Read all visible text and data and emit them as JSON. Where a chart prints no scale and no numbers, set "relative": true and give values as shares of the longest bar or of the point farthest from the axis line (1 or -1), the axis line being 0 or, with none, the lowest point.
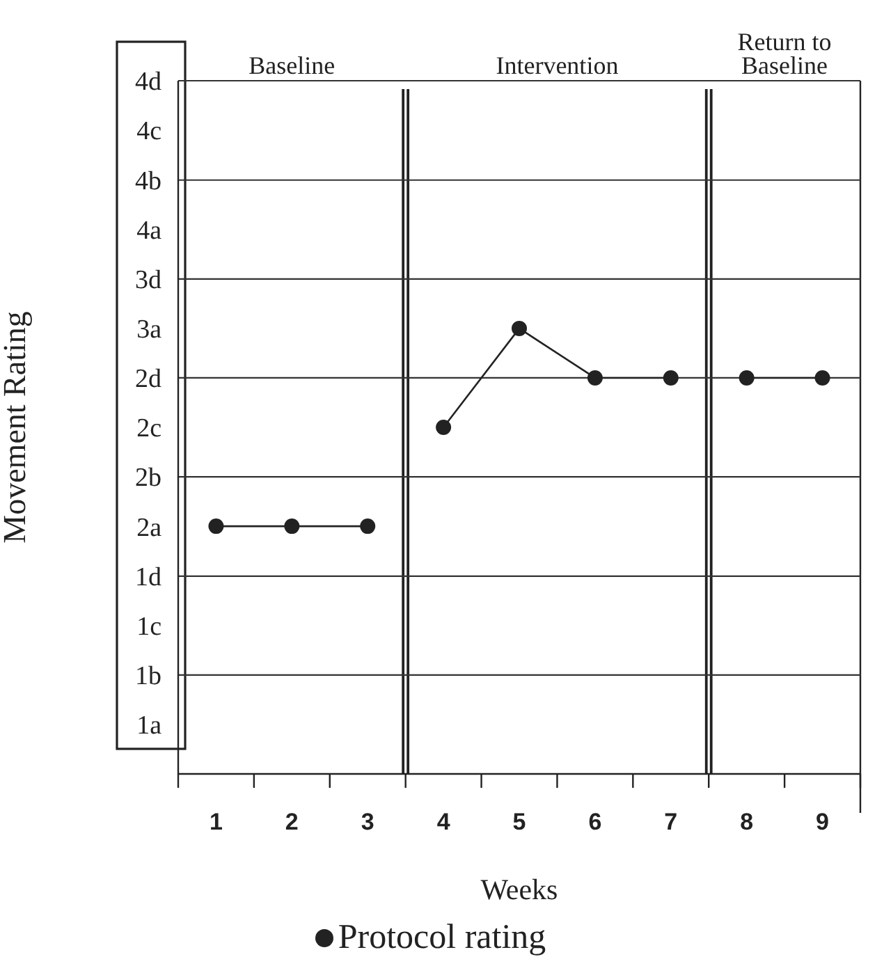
{
  "chart_data": {
    "type": "line",
    "xlabel": "Weeks",
    "ylabel": "Movement Rating",
    "annotations": [
      "Baseline",
      "Intervention",
      "Return to Baseline"
    ],
    "series": [
      {
        "name": "Protocol rating",
        "color": "#222222",
        "x": [
          1,
          2,
          3
        ],
        "values": [
          0.556,
          0.556,
          0.556
        ]
      },
      {
        "color": "#222222",
        "x": [
          4,
          5,
          6,
          7
        ],
        "values": [
          0.778,
          1,
          0.889,
          0.889
        ]
      },
      {
        "color": "#222222",
        "x": [
          8,
          9
        ],
        "values": [
          0.889,
          0.889
        ]
      }
    ],
    "xlim": [
      0.5,
      9.5
    ],
    "xticks": [
      {
        "value": 0.5,
        "label": null
      },
      1,
      {
        "value": 1.5,
        "label": null
      },
      2,
      {
        "value": 2.5,
        "label": null
      },
      3,
      {
        "value": 3.5,
        "label": null
      },
      4,
      {
        "value": 4.5,
        "label": null
      },
      5,
      {
        "value": 5.5,
        "label": null
      },
      6,
      {
        "value": 6.5,
        "label": null
      },
      7,
      {
        "value": 7.5,
        "label": null
      },
      8,
      {
        "value": 8.5,
        "label": null
      },
      9,
      {
        "value": 9.5,
        "label": null
      }
    ],
    "relative": true,
    "y_categories": [
      "4d",
      "4c",
      "4b",
      "4a",
      "3d",
      "3a",
      "2d",
      "2c",
      "2b",
      "2a",
      "1d",
      "1c",
      "1b",
      "1a"
    ],
    "ref_lines": [
      {
        "axis": "x",
        "value": 3.5,
        "color": "#222222"
      },
      {
        "axis": "x",
        "value": 7.5,
        "color": "#222222"
      },
      {
        "axis": "y",
        "value": 0.222,
        "color": "#333333"
      },
      {
        "axis": "y",
        "value": 0.444,
        "color": "#333333"
      },
      {
        "axis": "y",
        "value": 0.667,
        "color": "#333333"
      },
      {
        "axis": "y",
        "value": 0.889,
        "color": "#333333"
      },
      {
        "axis": "y",
        "value": 1.111,
        "color": "#333333"
      },
      {
        "axis": "y",
        "value": 1.333,
        "color": "#333333"
      },
      {
        "axis": "y",
        "value": 1.556,
        "color": "#333333"
      }
    ],
    "marker": "circle",
    "line_style": "solid",
    "legend": "bottom"
  }
}
